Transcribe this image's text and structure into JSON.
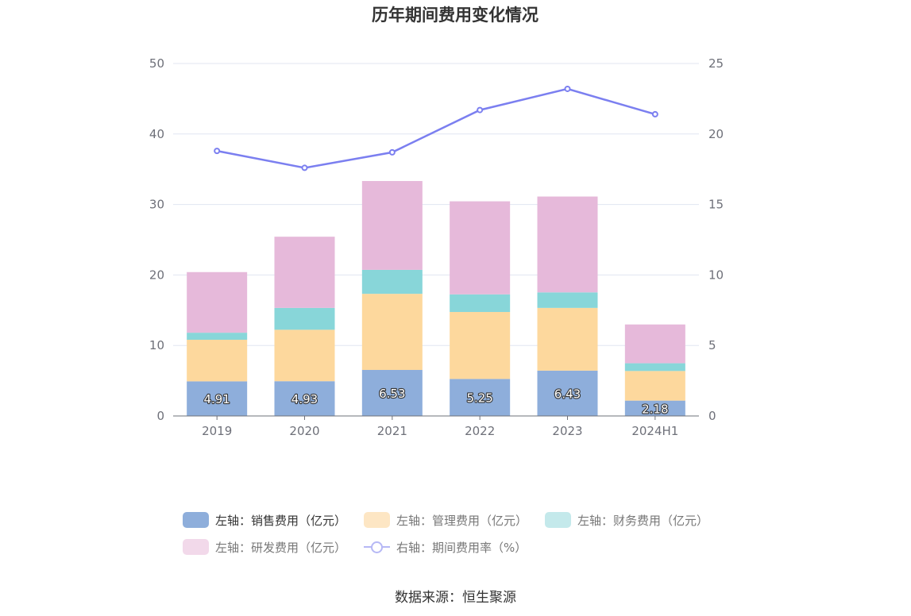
{
  "chart_data": {
    "type": "bar",
    "stacked": true,
    "title": "历年期间费用变化情况",
    "categories": [
      "2019",
      "2020",
      "2021",
      "2022",
      "2023",
      "2024H1"
    ],
    "y_left": {
      "ylim": [
        0,
        50
      ],
      "ticks": [
        0,
        10,
        20,
        30,
        40,
        50
      ]
    },
    "y_right": {
      "ylim": [
        0,
        25
      ],
      "ticks": [
        0,
        5,
        10,
        15,
        20,
        25
      ]
    },
    "series": [
      {
        "name": "左轴：销售费用（亿元）",
        "axis": "left",
        "type": "bar",
        "color": "#8eaedb",
        "values": [
          4.91,
          4.93,
          6.53,
          5.25,
          6.43,
          2.18
        ],
        "show_labels": true
      },
      {
        "name": "左轴：管理费用（亿元）",
        "axis": "left",
        "type": "bar",
        "color": "#fdd89d",
        "values": [
          5.9,
          7.3,
          10.8,
          9.5,
          8.9,
          4.2
        ]
      },
      {
        "name": "左轴：财务费用（亿元）",
        "axis": "left",
        "type": "bar",
        "color": "#88d6d9",
        "values": [
          1.0,
          3.1,
          3.4,
          2.5,
          2.2,
          1.1
        ]
      },
      {
        "name": "左轴：研发费用（亿元）",
        "axis": "left",
        "type": "bar",
        "color": "#e6b9da",
        "values": [
          8.6,
          10.1,
          12.6,
          13.2,
          13.6,
          5.5
        ]
      },
      {
        "name": "右轴：期间费用率（%）",
        "axis": "right",
        "type": "line",
        "color": "#7b7ff0",
        "values": [
          18.8,
          17.6,
          18.7,
          21.7,
          23.2,
          21.4
        ]
      }
    ]
  },
  "legend": {
    "items": [
      {
        "label": "左轴：销售费用（亿元）",
        "color": "#8eaedb",
        "kind": "box"
      },
      {
        "label": "左轴：管理费用（亿元）",
        "color": "#fde6c4",
        "kind": "box"
      },
      {
        "label": "左轴：财务费用（亿元）",
        "color": "#c4e9eb",
        "kind": "box"
      },
      {
        "label": "左轴：研发费用（亿元）",
        "color": "#f2d9ea",
        "kind": "box"
      },
      {
        "label": "右轴：期间费用率（%）",
        "color": "#b6b8f5",
        "kind": "line"
      }
    ]
  },
  "source": "数据来源：恒生聚源"
}
